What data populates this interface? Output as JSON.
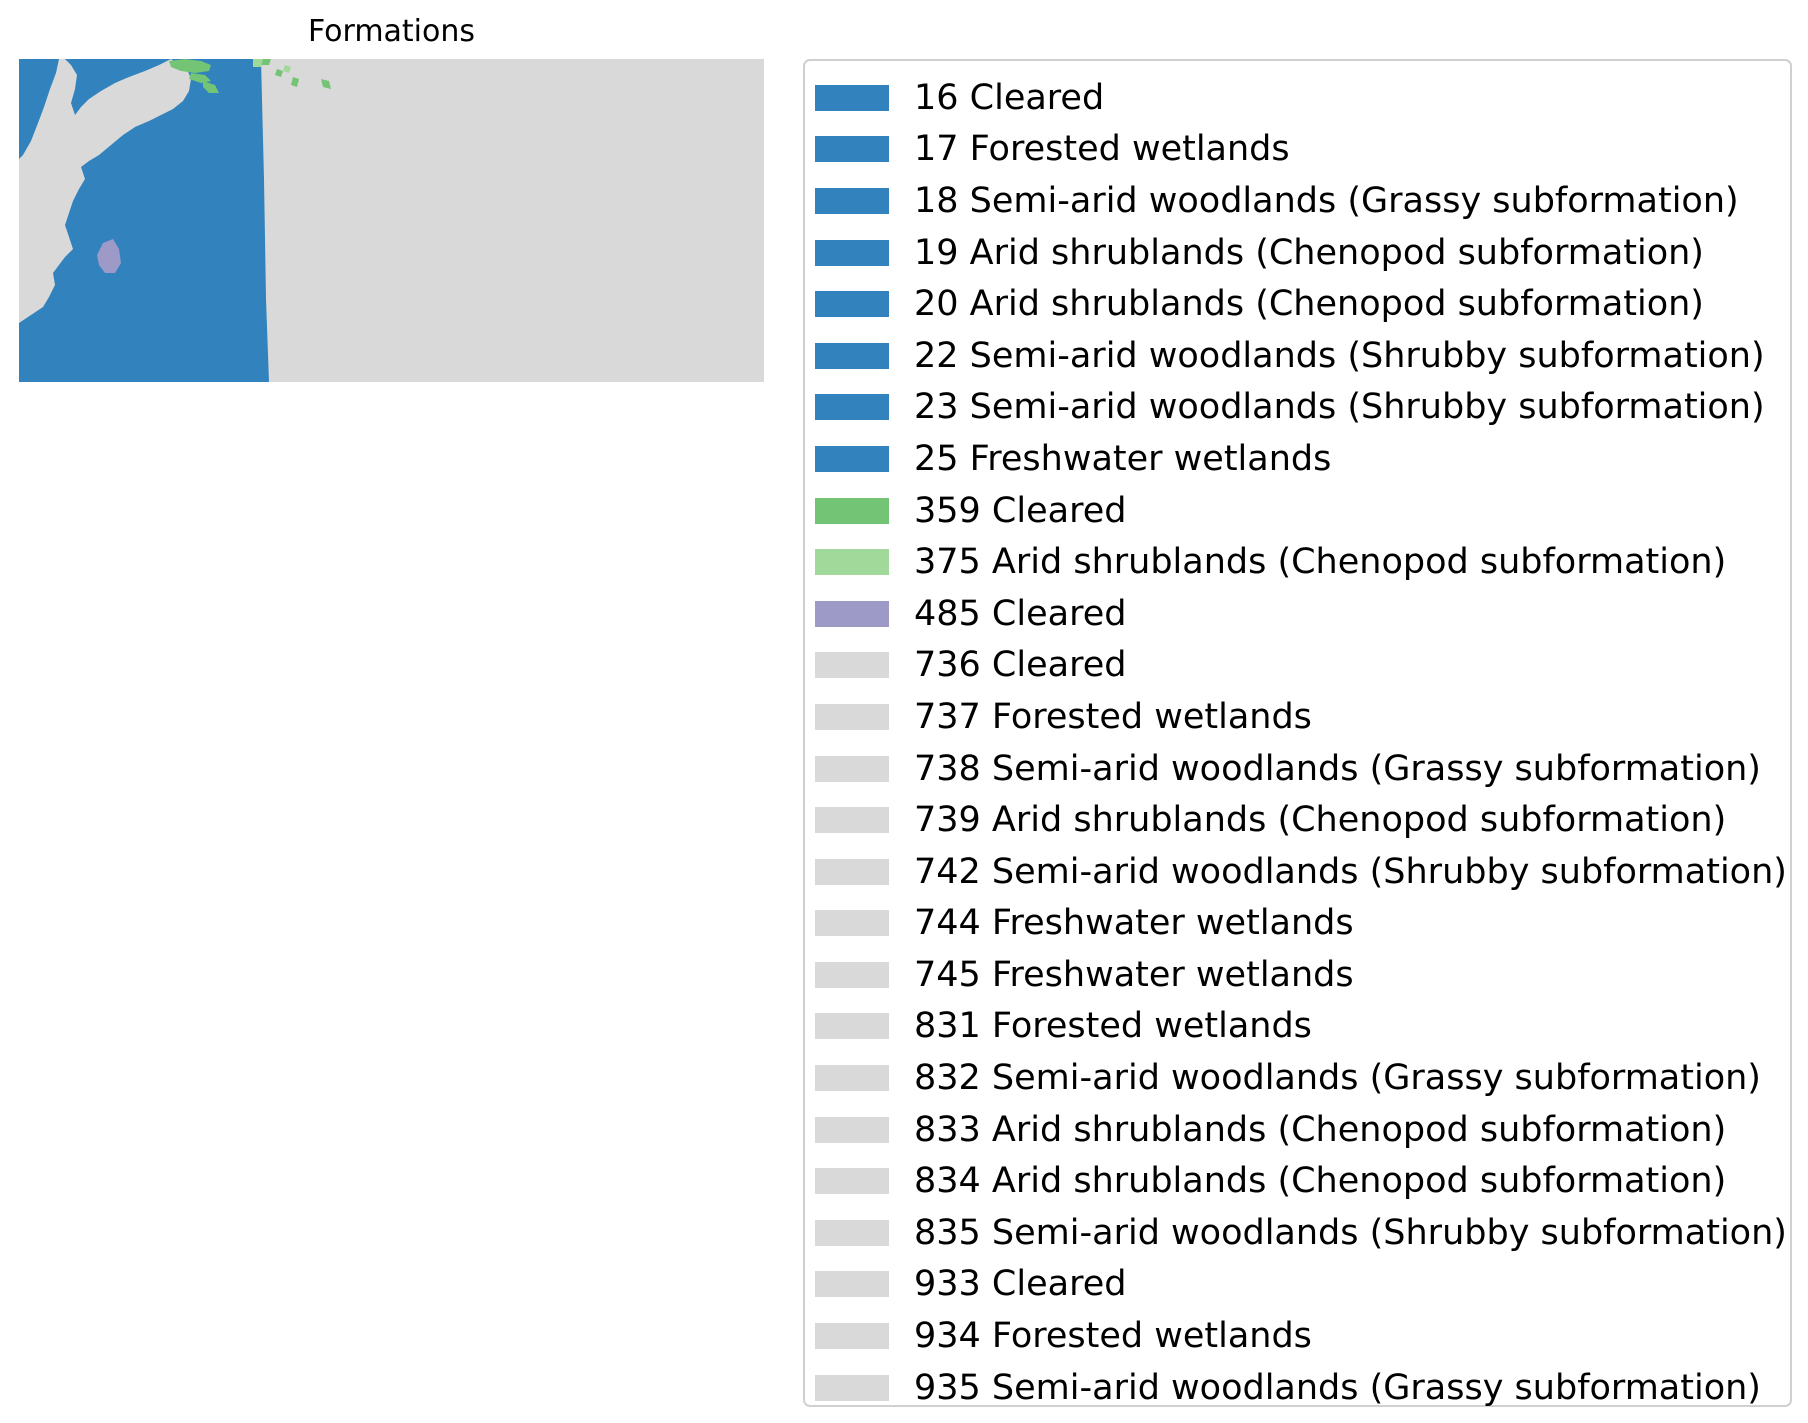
{
  "title": "Formations",
  "colors": {
    "blue": "#3182bd",
    "green": "#74c476",
    "light_green": "#a1d99b",
    "purple": "#9e9ac8",
    "grey": "#d9d9d9"
  },
  "map": {
    "description_regions": [
      "ocean-blue-region",
      "land-grey-region",
      "green-island-patches",
      "purple-patch"
    ]
  },
  "legend": [
    {
      "label": "16 Cleared",
      "color": "#3182bd"
    },
    {
      "label": "17 Forested wetlands",
      "color": "#3182bd"
    },
    {
      "label": "18 Semi-arid woodlands (Grassy subformation)",
      "color": "#3182bd"
    },
    {
      "label": "19 Arid shrublands (Chenopod subformation)",
      "color": "#3182bd"
    },
    {
      "label": "20 Arid shrublands (Chenopod subformation)",
      "color": "#3182bd"
    },
    {
      "label": "22 Semi-arid woodlands (Shrubby subformation)",
      "color": "#3182bd"
    },
    {
      "label": "23 Semi-arid woodlands (Shrubby subformation)",
      "color": "#3182bd"
    },
    {
      "label": "25 Freshwater wetlands",
      "color": "#3182bd"
    },
    {
      "label": "359 Cleared",
      "color": "#74c476"
    },
    {
      "label": "375 Arid shrublands (Chenopod subformation)",
      "color": "#a1d99b"
    },
    {
      "label": "485 Cleared",
      "color": "#9e9ac8"
    },
    {
      "label": "736 Cleared",
      "color": "#d9d9d9"
    },
    {
      "label": "737 Forested wetlands",
      "color": "#d9d9d9"
    },
    {
      "label": "738 Semi-arid woodlands (Grassy subformation)",
      "color": "#d9d9d9"
    },
    {
      "label": "739 Arid shrublands (Chenopod subformation)",
      "color": "#d9d9d9"
    },
    {
      "label": "742 Semi-arid woodlands (Shrubby subformation)",
      "color": "#d9d9d9"
    },
    {
      "label": "744 Freshwater wetlands",
      "color": "#d9d9d9"
    },
    {
      "label": "745 Freshwater wetlands",
      "color": "#d9d9d9"
    },
    {
      "label": "831 Forested wetlands",
      "color": "#d9d9d9"
    },
    {
      "label": "832 Semi-arid woodlands (Grassy subformation)",
      "color": "#d9d9d9"
    },
    {
      "label": "833 Arid shrublands (Chenopod subformation)",
      "color": "#d9d9d9"
    },
    {
      "label": "834 Arid shrublands (Chenopod subformation)",
      "color": "#d9d9d9"
    },
    {
      "label": "835 Semi-arid woodlands (Shrubby subformation)",
      "color": "#d9d9d9"
    },
    {
      "label": "933 Cleared",
      "color": "#d9d9d9"
    },
    {
      "label": "934 Forested wetlands",
      "color": "#d9d9d9"
    },
    {
      "label": "935 Semi-arid woodlands (Grassy subformation)",
      "color": "#d9d9d9"
    }
  ]
}
